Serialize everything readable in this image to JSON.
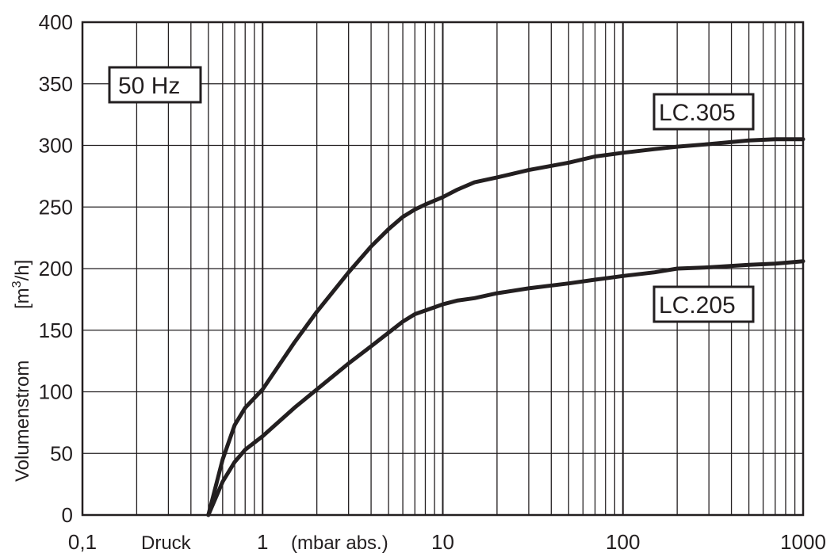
{
  "chart_data": {
    "type": "line",
    "xscale": "log",
    "xlim": [
      0.1,
      1000
    ],
    "ylim": [
      0,
      400
    ],
    "grid": true,
    "x_ticks": [
      "0,1",
      "1",
      "10",
      "100",
      "1000"
    ],
    "y_ticks": [
      "0",
      "50",
      "100",
      "150",
      "200",
      "250",
      "300",
      "350",
      "400"
    ],
    "xlabel": "Druck",
    "xunit": "(mbar abs.)",
    "ylabel": "Volumenstrom",
    "yunit_pre": "[m",
    "yunit_sup": "3",
    "yunit_post": "/h]",
    "annotation": "50 Hz",
    "series": [
      {
        "name": "LC.305",
        "x": [
          0.5,
          0.6,
          0.7,
          0.8,
          1,
          1.5,
          2,
          3,
          4,
          5,
          6,
          7,
          8,
          10,
          12,
          15,
          20,
          30,
          50,
          70,
          100,
          150,
          200,
          300,
          500,
          700,
          1000
        ],
        "y": [
          0,
          45,
          73,
          87,
          102,
          140,
          165,
          197,
          218,
          232,
          242,
          248,
          252,
          258,
          264,
          270,
          274,
          280,
          286,
          291,
          294,
          297,
          299,
          301,
          304,
          305,
          305
        ]
      },
      {
        "name": "LC.205",
        "x": [
          0.5,
          0.6,
          0.7,
          0.8,
          1,
          1.5,
          2,
          3,
          4,
          5,
          6,
          7,
          8,
          10,
          12,
          15,
          20,
          30,
          50,
          70,
          100,
          150,
          200,
          300,
          500,
          700,
          1000
        ],
        "y": [
          0,
          27,
          43,
          53,
          64,
          87,
          102,
          123,
          137,
          148,
          157,
          163,
          166,
          171,
          174,
          176,
          180,
          184,
          188,
          191,
          194,
          197,
          200,
          201,
          203,
          204,
          206
        ]
      }
    ]
  }
}
